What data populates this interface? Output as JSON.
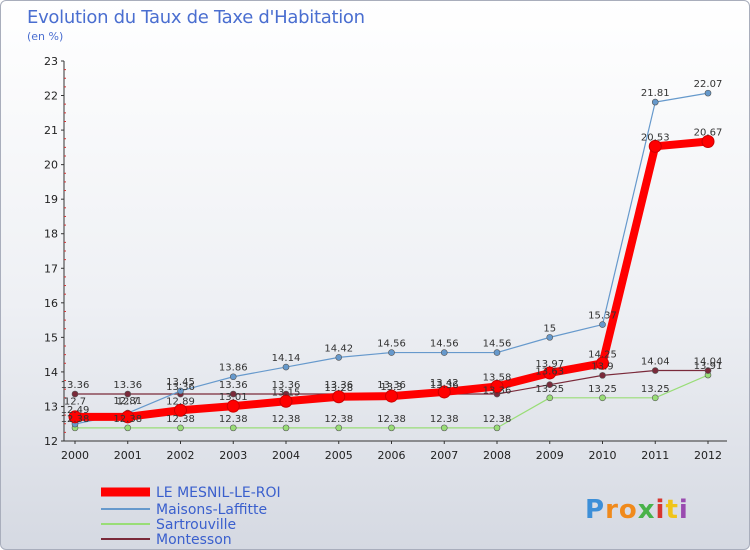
{
  "chart_data": {
    "type": "line",
    "title": "Evolution du Taux de Taxe d'Habitation",
    "ylabel": "(en %)",
    "xlabel": "",
    "x": [
      "2000",
      "2001",
      "2002",
      "2003",
      "2004",
      "2005",
      "2006",
      "2007",
      "2008",
      "2009",
      "2010",
      "2011",
      "2012"
    ],
    "ylim": [
      12,
      23
    ],
    "yticks": [
      12,
      13,
      14,
      15,
      16,
      17,
      18,
      19,
      20,
      21,
      22,
      23
    ],
    "grid": false,
    "legend_position": "bottom-left",
    "series": [
      {
        "name": "Sartrouville",
        "color": "#99dd77",
        "values": [
          12.38,
          12.38,
          12.38,
          12.38,
          12.38,
          12.38,
          12.38,
          12.38,
          12.38,
          13.25,
          13.25,
          13.25,
          13.91
        ]
      },
      {
        "name": "Montesson",
        "color": "#7a2a3a",
        "values": [
          13.36,
          13.36,
          13.36,
          13.36,
          13.36,
          13.36,
          13.36,
          13.36,
          13.36,
          13.63,
          13.9,
          14.04,
          14.04
        ]
      },
      {
        "name": "Maisons-Laffitte",
        "color": "#6699cc",
        "values": [
          12.49,
          12.81,
          13.45,
          13.86,
          14.14,
          14.42,
          14.56,
          14.56,
          14.56,
          15,
          15.37,
          21.81,
          22.07
        ]
      },
      {
        "name": "LE MESNIL-LE-ROI",
        "color": "#ff0000",
        "values": [
          12.7,
          12.7,
          12.89,
          13.01,
          13.15,
          13.28,
          13.3,
          13.42,
          13.58,
          13.97,
          14.25,
          20.53,
          20.67
        ]
      }
    ],
    "labels": [
      {
        "text": "13.36",
        "x": "2000",
        "y": 13.36
      },
      {
        "text": "13.36",
        "x": "2001",
        "y": 13.36
      },
      {
        "text": "13.36",
        "x": "2002",
        "y": 13.3
      },
      {
        "text": "13.36",
        "x": "2003",
        "y": 13.36
      },
      {
        "text": "13.36",
        "x": "2004",
        "y": 13.36
      },
      {
        "text": "13.36",
        "x": "2005",
        "y": 13.36
      },
      {
        "text": "13.36",
        "x": "2006",
        "y": 13.36
      },
      {
        "text": "13.36",
        "x": "2007",
        "y": 13.36
      },
      {
        "text": "13.36",
        "x": "2008",
        "y": 13.2
      },
      {
        "text": "13.63",
        "x": "2009",
        "y": 13.75
      },
      {
        "text": "13.9",
        "x": "2010",
        "y": 13.9
      },
      {
        "text": "14.04",
        "x": "2011",
        "y": 14.04
      },
      {
        "text": "14.04",
        "x": "2012",
        "y": 14.04
      },
      {
        "text": "12.49",
        "x": "2000",
        "y": 12.63
      },
      {
        "text": "12.81",
        "x": "2001",
        "y": 12.9
      },
      {
        "text": "13.45",
        "x": "2002",
        "y": 13.45
      },
      {
        "text": "13.86",
        "x": "2003",
        "y": 13.86
      },
      {
        "text": "14.14",
        "x": "2004",
        "y": 14.14
      },
      {
        "text": "14.42",
        "x": "2005",
        "y": 14.42
      },
      {
        "text": "14.56",
        "x": "2006",
        "y": 14.56
      },
      {
        "text": "14.56",
        "x": "2007",
        "y": 14.56
      },
      {
        "text": "14.56",
        "x": "2008",
        "y": 14.56
      },
      {
        "text": "15",
        "x": "2009",
        "y": 15
      },
      {
        "text": "15.37",
        "x": "2010",
        "y": 15.37
      },
      {
        "text": "21.81",
        "x": "2011",
        "y": 21.81
      },
      {
        "text": "22.07",
        "x": "2012",
        "y": 22.07
      },
      {
        "text": "12.7",
        "x": "2000",
        "y": 12.88
      },
      {
        "text": "12.7",
        "x": "2001",
        "y": 12.88
      },
      {
        "text": "12.89",
        "x": "2002",
        "y": 12.89
      },
      {
        "text": "13.01",
        "x": "2003",
        "y": 13.01
      },
      {
        "text": "13.15",
        "x": "2004",
        "y": 13.15
      },
      {
        "text": "13.28",
        "x": "2005",
        "y": 13.28
      },
      {
        "text": "13.3",
        "x": "2006",
        "y": 13.3
      },
      {
        "text": "13.42",
        "x": "2007",
        "y": 13.42
      },
      {
        "text": "13.58",
        "x": "2008",
        "y": 13.58
      },
      {
        "text": "13.97",
        "x": "2009",
        "y": 13.97
      },
      {
        "text": "14.25",
        "x": "2010",
        "y": 14.25
      },
      {
        "text": "20.53",
        "x": "2011",
        "y": 20.53
      },
      {
        "text": "20.67",
        "x": "2012",
        "y": 20.67
      },
      {
        "text": "12.38",
        "x": "2000",
        "y": 12.38
      },
      {
        "text": "12.38",
        "x": "2001",
        "y": 12.38
      },
      {
        "text": "12.38",
        "x": "2002",
        "y": 12.38
      },
      {
        "text": "12.38",
        "x": "2003",
        "y": 12.38
      },
      {
        "text": "12.38",
        "x": "2004",
        "y": 12.38
      },
      {
        "text": "12.38",
        "x": "2005",
        "y": 12.38
      },
      {
        "text": "12.38",
        "x": "2006",
        "y": 12.38
      },
      {
        "text": "12.38",
        "x": "2007",
        "y": 12.38
      },
      {
        "text": "12.38",
        "x": "2008",
        "y": 12.38
      },
      {
        "text": "13.25",
        "x": "2009",
        "y": 13.25
      },
      {
        "text": "13.25",
        "x": "2010",
        "y": 13.25
      },
      {
        "text": "13.25",
        "x": "2011",
        "y": 13.25
      },
      {
        "text": "13.91",
        "x": "2012",
        "y": 13.91
      }
    ]
  },
  "legend": [
    {
      "name": "LE MESNIL-LE-ROI",
      "color": "#ff0000"
    },
    {
      "name": "Maisons-Laffitte",
      "color": "#6699cc"
    },
    {
      "name": "Sartrouville",
      "color": "#99dd77"
    },
    {
      "name": "Montesson",
      "color": "#7a2a3a"
    }
  ],
  "logo": {
    "text": "Proxiti",
    "letter_colors": [
      "#3d8fd8",
      "#f08a1c",
      "#f08a1c",
      "#49b24a",
      "#d8362f",
      "#f0c419",
      "#9a4bb0"
    ]
  }
}
